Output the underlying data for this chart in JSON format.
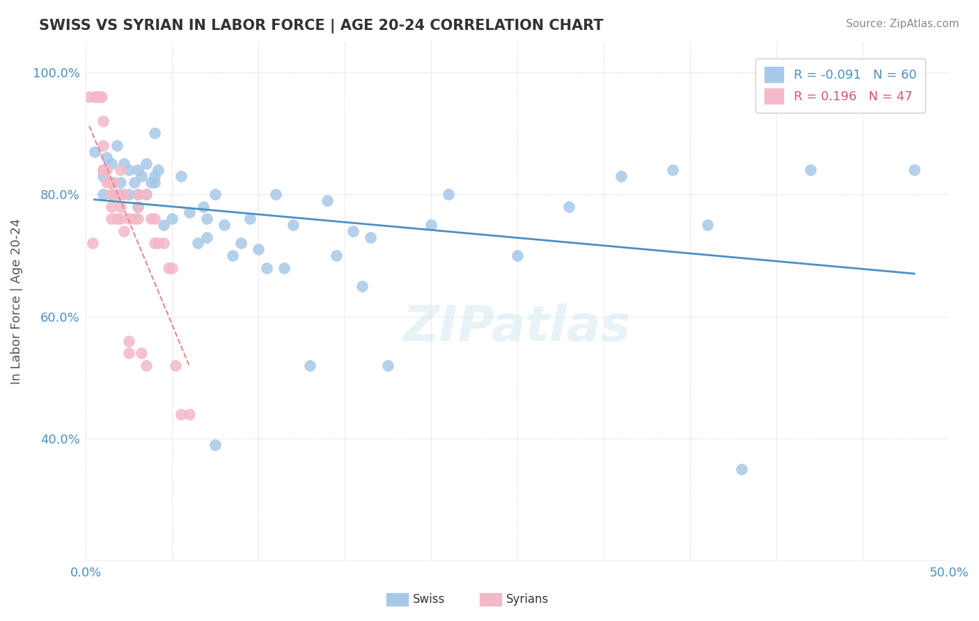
{
  "title": "SWISS VS SYRIAN IN LABOR FORCE | AGE 20-24 CORRELATION CHART",
  "ylabel": "In Labor Force | Age 20-24",
  "source_text": "Source: ZipAtlas.com",
  "xlim": [
    0.0,
    0.5
  ],
  "ylim": [
    0.2,
    1.05
  ],
  "xticks": [
    0.0,
    0.05,
    0.1,
    0.15,
    0.2,
    0.25,
    0.3,
    0.35,
    0.4,
    0.45,
    0.5
  ],
  "xticklabels": [
    "0.0%",
    "",
    "",
    "",
    "",
    "",
    "",
    "",
    "",
    "",
    "50.0%"
  ],
  "yticks": [
    0.4,
    0.6,
    0.8,
    1.0
  ],
  "yticklabels": [
    "40.0%",
    "60.0%",
    "80.0%",
    "100.0%"
  ],
  "legend_r_swiss": "-0.091",
  "legend_n_swiss": "60",
  "legend_r_syrians": "0.196",
  "legend_n_syrians": "47",
  "swiss_color": "#a8c8e8",
  "syrian_color": "#f4b8c8",
  "swiss_line_color": "#4a90c4",
  "syrian_line_color": "#e88888",
  "watermark": "ZIPatlas",
  "swiss_dots": [
    [
      0.005,
      0.87
    ],
    [
      0.01,
      0.83
    ],
    [
      0.01,
      0.8
    ],
    [
      0.012,
      0.86
    ],
    [
      0.015,
      0.82
    ],
    [
      0.015,
      0.85
    ],
    [
      0.018,
      0.88
    ],
    [
      0.02,
      0.8
    ],
    [
      0.02,
      0.82
    ],
    [
      0.022,
      0.85
    ],
    [
      0.025,
      0.84
    ],
    [
      0.025,
      0.8
    ],
    [
      0.028,
      0.82
    ],
    [
      0.03,
      0.78
    ],
    [
      0.03,
      0.8
    ],
    [
      0.03,
      0.84
    ],
    [
      0.032,
      0.83
    ],
    [
      0.035,
      0.85
    ],
    [
      0.035,
      0.8
    ],
    [
      0.038,
      0.82
    ],
    [
      0.04,
      0.9
    ],
    [
      0.04,
      0.83
    ],
    [
      0.04,
      0.82
    ],
    [
      0.042,
      0.84
    ],
    [
      0.045,
      0.75
    ],
    [
      0.05,
      0.76
    ],
    [
      0.055,
      0.83
    ],
    [
      0.06,
      0.77
    ],
    [
      0.065,
      0.72
    ],
    [
      0.068,
      0.78
    ],
    [
      0.07,
      0.73
    ],
    [
      0.07,
      0.76
    ],
    [
      0.075,
      0.8
    ],
    [
      0.075,
      0.39
    ],
    [
      0.08,
      0.75
    ],
    [
      0.085,
      0.7
    ],
    [
      0.09,
      0.72
    ],
    [
      0.095,
      0.76
    ],
    [
      0.1,
      0.71
    ],
    [
      0.105,
      0.68
    ],
    [
      0.11,
      0.8
    ],
    [
      0.115,
      0.68
    ],
    [
      0.12,
      0.75
    ],
    [
      0.13,
      0.52
    ],
    [
      0.14,
      0.79
    ],
    [
      0.145,
      0.7
    ],
    [
      0.155,
      0.74
    ],
    [
      0.16,
      0.65
    ],
    [
      0.165,
      0.73
    ],
    [
      0.175,
      0.52
    ],
    [
      0.2,
      0.75
    ],
    [
      0.21,
      0.8
    ],
    [
      0.25,
      0.7
    ],
    [
      0.28,
      0.78
    ],
    [
      0.31,
      0.83
    ],
    [
      0.34,
      0.84
    ],
    [
      0.36,
      0.75
    ],
    [
      0.38,
      0.35
    ],
    [
      0.42,
      0.84
    ],
    [
      0.48,
      0.84
    ]
  ],
  "syrian_dots": [
    [
      0.002,
      0.96
    ],
    [
      0.004,
      0.72
    ],
    [
      0.005,
      0.96
    ],
    [
      0.006,
      0.96
    ],
    [
      0.007,
      0.96
    ],
    [
      0.008,
      0.96
    ],
    [
      0.009,
      0.96
    ],
    [
      0.01,
      0.92
    ],
    [
      0.01,
      0.88
    ],
    [
      0.01,
      0.84
    ],
    [
      0.01,
      0.84
    ],
    [
      0.01,
      0.84
    ],
    [
      0.012,
      0.82
    ],
    [
      0.012,
      0.84
    ],
    [
      0.014,
      0.82
    ],
    [
      0.015,
      0.8
    ],
    [
      0.015,
      0.78
    ],
    [
      0.015,
      0.76
    ],
    [
      0.015,
      0.8
    ],
    [
      0.016,
      0.82
    ],
    [
      0.018,
      0.76
    ],
    [
      0.018,
      0.8
    ],
    [
      0.02,
      0.76
    ],
    [
      0.02,
      0.84
    ],
    [
      0.02,
      0.78
    ],
    [
      0.022,
      0.8
    ],
    [
      0.022,
      0.74
    ],
    [
      0.025,
      0.76
    ],
    [
      0.025,
      0.56
    ],
    [
      0.025,
      0.54
    ],
    [
      0.028,
      0.76
    ],
    [
      0.03,
      0.8
    ],
    [
      0.03,
      0.76
    ],
    [
      0.03,
      0.78
    ],
    [
      0.032,
      0.54
    ],
    [
      0.035,
      0.8
    ],
    [
      0.035,
      0.52
    ],
    [
      0.038,
      0.76
    ],
    [
      0.04,
      0.76
    ],
    [
      0.04,
      0.72
    ],
    [
      0.042,
      0.72
    ],
    [
      0.045,
      0.72
    ],
    [
      0.048,
      0.68
    ],
    [
      0.05,
      0.68
    ],
    [
      0.052,
      0.52
    ],
    [
      0.055,
      0.44
    ],
    [
      0.06,
      0.44
    ]
  ]
}
